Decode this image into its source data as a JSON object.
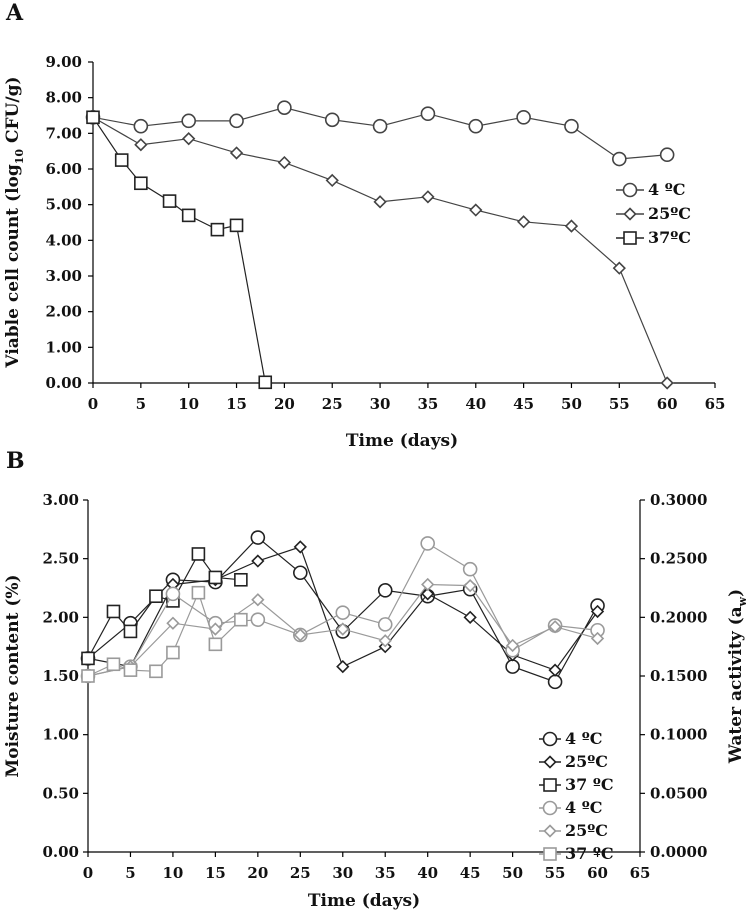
{
  "chart_data": [
    {
      "panel_label": "A",
      "type": "line",
      "xlabel": "Time (days)",
      "ylabel": "Viable cell count  (log10 CFU/g)",
      "ylabel_parts": {
        "before": "Viable cell count  (log",
        "sub": "10",
        "after": " CFU/g)"
      },
      "xlim": [
        0,
        65
      ],
      "ylim": [
        0,
        9
      ],
      "x_ticks": [
        0,
        5,
        10,
        15,
        20,
        25,
        30,
        35,
        40,
        45,
        50,
        55,
        60,
        65
      ],
      "x_tick_labels": [
        "0",
        "5",
        "10",
        "15",
        "20",
        "25",
        "30",
        "35",
        "40",
        "45",
        "50",
        "55",
        "60",
        "65"
      ],
      "y_ticks": [
        0,
        1,
        2,
        3,
        4,
        5,
        6,
        7,
        8,
        9
      ],
      "y_tick_labels": [
        "0.00",
        "1.00",
        "2.00",
        "3.00",
        "4.00",
        "5.00",
        "6.00",
        "7.00",
        "8.00",
        "9.00"
      ],
      "legend_position": "right",
      "series": [
        {
          "name": "4 ºC",
          "marker": "circle",
          "color": "#444444",
          "x": [
            0,
            5,
            10,
            15,
            20,
            25,
            30,
            35,
            40,
            45,
            50,
            55,
            60
          ],
          "values": [
            7.45,
            7.2,
            7.35,
            7.35,
            7.72,
            7.38,
            7.2,
            7.55,
            7.2,
            7.45,
            7.2,
            6.28,
            6.4
          ]
        },
        {
          "name": "25ºC",
          "marker": "diamond",
          "color": "#444444",
          "x": [
            0,
            5,
            10,
            15,
            20,
            25,
            30,
            35,
            40,
            45,
            50,
            55,
            60
          ],
          "values": [
            7.45,
            6.68,
            6.85,
            6.45,
            6.18,
            5.68,
            5.08,
            5.22,
            4.85,
            4.52,
            4.4,
            3.22,
            0.0
          ]
        },
        {
          "name": "37ºC",
          "marker": "square",
          "color": "#222222",
          "x": [
            0,
            3,
            5,
            8,
            10,
            13,
            15,
            18
          ],
          "values": [
            7.45,
            6.25,
            5.6,
            5.1,
            4.7,
            4.3,
            4.42,
            0.02
          ]
        }
      ]
    },
    {
      "panel_label": "B",
      "type": "line",
      "xlabel": "Time (days)",
      "ylabel": "Moisture content (%)",
      "y2label": "Water activity (aw)",
      "y2label_parts": {
        "before": "Water activity (a",
        "sub": "w",
        "after": ")"
      },
      "xlim": [
        0,
        65
      ],
      "ylim": [
        0,
        3
      ],
      "y2lim": [
        0,
        0.3
      ],
      "x_ticks": [
        0,
        5,
        10,
        15,
        20,
        25,
        30,
        35,
        40,
        45,
        50,
        55,
        60,
        65
      ],
      "x_tick_labels": [
        "0",
        "5",
        "10",
        "15",
        "20",
        "25",
        "30",
        "35",
        "40",
        "45",
        "50",
        "55",
        "60",
        "65"
      ],
      "y_ticks": [
        0,
        0.5,
        1,
        1.5,
        2,
        2.5,
        3
      ],
      "y_tick_labels": [
        "0.00",
        "0.50",
        "1.00",
        "1.50",
        "2.00",
        "2.50",
        "3.00"
      ],
      "y2_ticks": [
        0,
        0.05,
        0.1,
        0.15,
        0.2,
        0.25,
        0.3
      ],
      "y2_tick_labels": [
        "0.0000",
        "0.0500",
        "0.1000",
        "0.1500",
        "0.2000",
        "0.2500",
        "0.3000"
      ],
      "legend_position": "lower-right",
      "series": [
        {
          "name": "4 ºC",
          "axis": "moisture",
          "marker": "circle",
          "color": "#222222",
          "x": [
            0,
            5,
            10,
            15,
            20,
            25,
            30,
            35,
            40,
            45,
            50,
            55,
            60
          ],
          "values": [
            1.65,
            1.95,
            2.32,
            2.3,
            2.68,
            2.38,
            1.88,
            2.23,
            2.18,
            2.24,
            1.58,
            1.45,
            2.1
          ]
        },
        {
          "name": "25ºC",
          "axis": "moisture",
          "marker": "diamond",
          "color": "#222222",
          "x": [
            0,
            5,
            10,
            15,
            20,
            25,
            30,
            35,
            40,
            45,
            50,
            55,
            60
          ],
          "values": [
            1.65,
            1.58,
            2.28,
            2.32,
            2.48,
            2.6,
            1.58,
            1.75,
            2.2,
            2.0,
            1.68,
            1.55,
            2.05
          ]
        },
        {
          "name": "37 ºC",
          "axis": "moisture",
          "marker": "square",
          "color": "#222222",
          "x": [
            0,
            3,
            5,
            8,
            10,
            13,
            15,
            18
          ],
          "values": [
            1.65,
            2.05,
            1.88,
            2.18,
            2.14,
            2.54,
            2.34,
            2.32
          ]
        },
        {
          "name": "4 ºC",
          "axis": "water_activity",
          "marker": "circle",
          "color": "#9a9a9a",
          "x": [
            0,
            5,
            10,
            15,
            20,
            25,
            30,
            35,
            40,
            45,
            50,
            55,
            60
          ],
          "values": [
            0.15,
            0.158,
            0.22,
            0.195,
            0.198,
            0.185,
            0.204,
            0.194,
            0.263,
            0.241,
            0.172,
            0.193,
            0.189
          ]
        },
        {
          "name": "25ºC",
          "axis": "water_activity",
          "marker": "diamond",
          "color": "#9a9a9a",
          "x": [
            0,
            5,
            10,
            15,
            20,
            25,
            30,
            35,
            40,
            45,
            50,
            55,
            60
          ],
          "values": [
            0.15,
            0.158,
            0.195,
            0.19,
            0.215,
            0.185,
            0.19,
            0.18,
            0.228,
            0.227,
            0.176,
            0.192,
            0.182
          ]
        },
        {
          "name": "37 ºC",
          "axis": "water_activity",
          "marker": "square",
          "color": "#9a9a9a",
          "x": [
            0,
            3,
            5,
            8,
            10,
            13,
            15,
            18
          ],
          "values": [
            0.15,
            0.16,
            0.155,
            0.154,
            0.17,
            0.221,
            0.177,
            0.198
          ]
        }
      ]
    }
  ]
}
